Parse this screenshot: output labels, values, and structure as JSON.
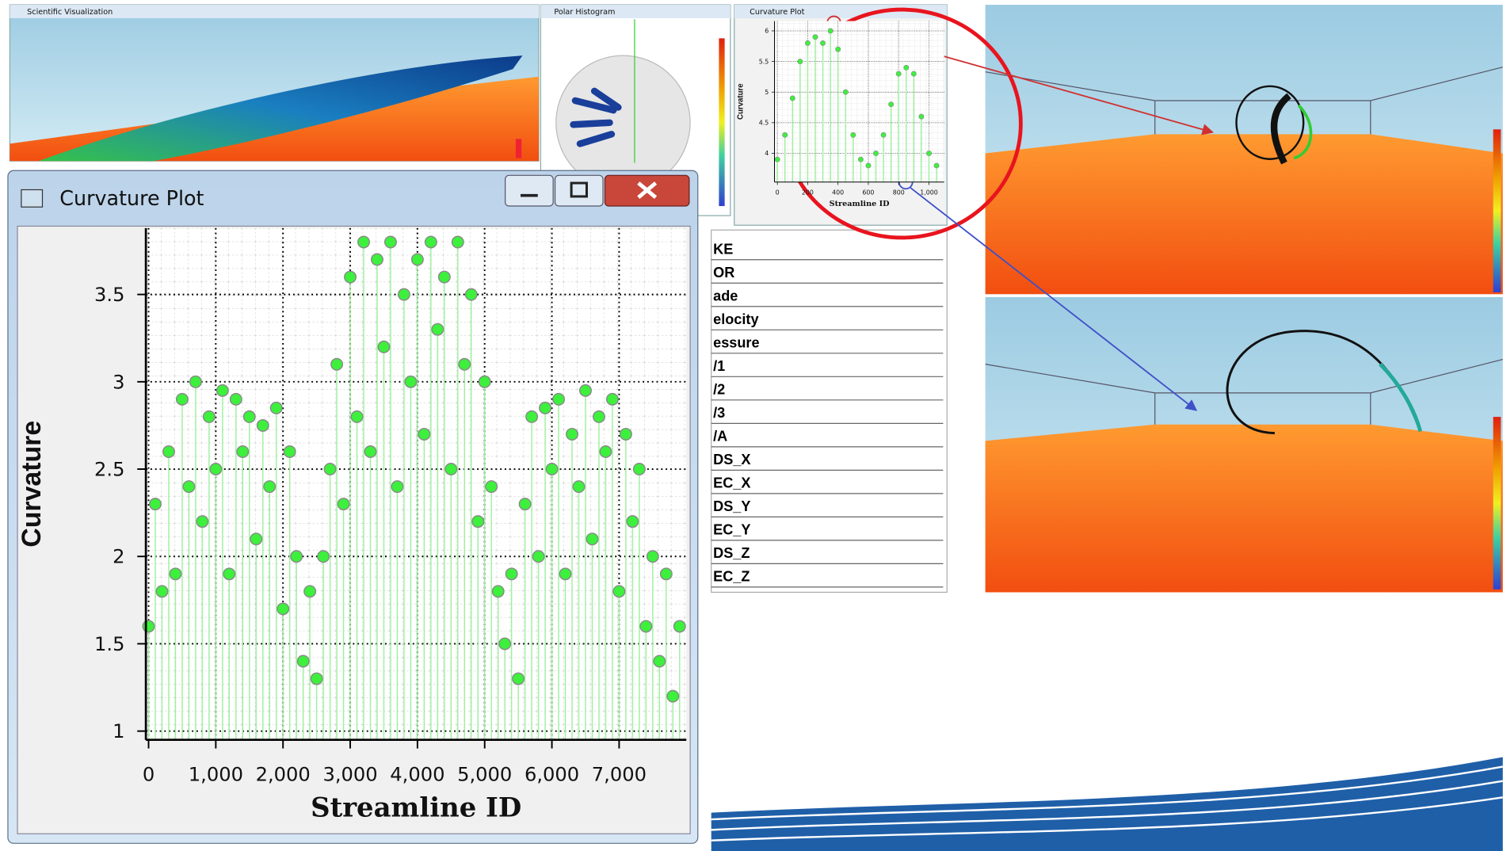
{
  "windows": {
    "scientific_visualization": {
      "title": "Scientific Visualization"
    },
    "polar_histogram": {
      "title": "Polar Histogram"
    }
  },
  "parallel_panel": {
    "labels": [
      "KE",
      "OR",
      "ade",
      "elocity",
      "essure",
      "/1",
      "/2",
      "/3",
      "/A",
      "DS_X",
      "EC_X",
      "DS_Y",
      "EC_Y",
      "DS_Z",
      "EC_Z"
    ]
  },
  "chart_data": [
    {
      "type": "scatter",
      "title": "Curvature Plot",
      "xlabel": "Streamline ID",
      "ylabel": "Curvature",
      "color": "#3cf03c",
      "grid": true,
      "x": [
        0,
        100,
        200,
        300,
        400,
        500,
        600,
        700,
        800,
        900,
        1000,
        1100,
        1200,
        1300,
        1400,
        1500,
        1600,
        1700,
        1800,
        1900,
        2000,
        2100,
        2200,
        2300,
        2400,
        2500,
        2600,
        2700,
        2800,
        2900,
        3000,
        3100,
        3200,
        3300,
        3400,
        3500,
        3600,
        3700,
        3800,
        3900,
        4000,
        4100,
        4200,
        4300,
        4400,
        4500,
        4600,
        4700,
        4800,
        4900,
        5000,
        5100,
        5200,
        5300,
        5400,
        5500,
        5600,
        5700,
        5800,
        5900,
        6000,
        6100,
        6200,
        6300,
        6400,
        6500,
        6600,
        6700,
        6800,
        6900,
        7000,
        7100,
        7200,
        7300,
        7400,
        7500,
        7600,
        7700,
        7800,
        7900
      ],
      "values": [
        1.6,
        2.3,
        1.8,
        2.6,
        1.9,
        2.9,
        2.4,
        3.0,
        2.2,
        2.8,
        2.5,
        2.95,
        1.9,
        2.9,
        2.6,
        2.8,
        2.1,
        2.75,
        2.4,
        2.85,
        1.7,
        2.6,
        2.0,
        1.4,
        1.8,
        1.3,
        2.0,
        2.5,
        3.1,
        2.3,
        3.6,
        2.8,
        3.8,
        2.6,
        3.7,
        3.2,
        3.8,
        2.4,
        3.5,
        3.0,
        3.7,
        2.7,
        3.8,
        3.3,
        3.6,
        2.5,
        3.8,
        3.1,
        3.5,
        2.2,
        3.0,
        2.4,
        1.8,
        1.5,
        1.9,
        1.3,
        2.3,
        2.8,
        2.0,
        2.85,
        2.5,
        2.9,
        1.9,
        2.7,
        2.4,
        2.95,
        2.1,
        2.8,
        2.6,
        2.9,
        1.8,
        2.7,
        2.2,
        2.5,
        1.6,
        2.0,
        1.4,
        1.9,
        1.2,
        1.6
      ],
      "xlim": [
        -40,
        8000
      ],
      "ylim": [
        0.95,
        3.88
      ],
      "xticks": [
        0,
        {
          "value": 1000,
          "label": "1,000"
        },
        {
          "value": 2000,
          "label": "2,000"
        },
        {
          "value": 3000,
          "label": "3,000"
        },
        {
          "value": 4000,
          "label": "4,000"
        },
        {
          "value": 5000,
          "label": "5,000"
        },
        {
          "value": 6000,
          "label": "6,000"
        },
        {
          "value": 7000,
          "label": "7,000"
        }
      ],
      "yticks": [
        1,
        1.5,
        2,
        2.5,
        3,
        3.5
      ]
    },
    {
      "type": "scatter",
      "title": "Curvature Plot",
      "xlabel": "Streamline ID",
      "ylabel": "Curvature",
      "color": "#3cf03c",
      "grid": true,
      "x": [
        0,
        50,
        100,
        150,
        200,
        250,
        300,
        350,
        400,
        450,
        500,
        550,
        600,
        650,
        700,
        750,
        800,
        850,
        900,
        950,
        1000,
        1050
      ],
      "values": [
        3.9,
        4.3,
        4.9,
        5.5,
        5.8,
        5.9,
        5.8,
        6.0,
        5.7,
        5.0,
        4.3,
        3.9,
        3.8,
        4.0,
        4.3,
        4.8,
        5.3,
        5.4,
        5.3,
        4.6,
        4.0,
        3.8
      ],
      "xlim": [
        -19,
        1100
      ],
      "ylim": [
        3.53,
        6.16
      ],
      "xticks": [
        0,
        200,
        400,
        600,
        800,
        {
          "value": 1000,
          "label": "1,000"
        }
      ],
      "yticks": [
        4,
        4.5,
        5,
        5.5,
        6
      ]
    }
  ]
}
